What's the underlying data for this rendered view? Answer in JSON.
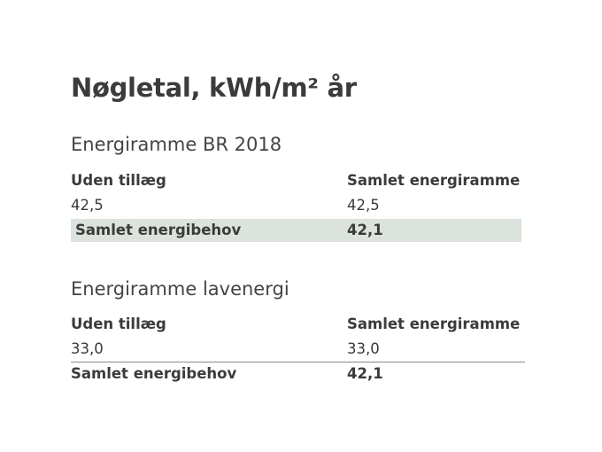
{
  "title": "Nøgletal, kWh/m² år",
  "sections": [
    {
      "heading": "Energiramme BR 2018",
      "table": {
        "header": [
          "Uden tillæg",
          "Samlet energiramme"
        ],
        "rows": [
          [
            "42,5",
            "42,5"
          ],
          [
            "Samlet energibehov",
            "42,1"
          ]
        ]
      }
    },
    {
      "heading": "Energiramme lavenergi",
      "table": {
        "header": [
          "Uden tillæg",
          "Samlet energiramme"
        ],
        "rows": [
          [
            "33,0",
            "33,0"
          ],
          [
            "Samlet energibehov",
            "42,1"
          ]
        ]
      }
    }
  ]
}
